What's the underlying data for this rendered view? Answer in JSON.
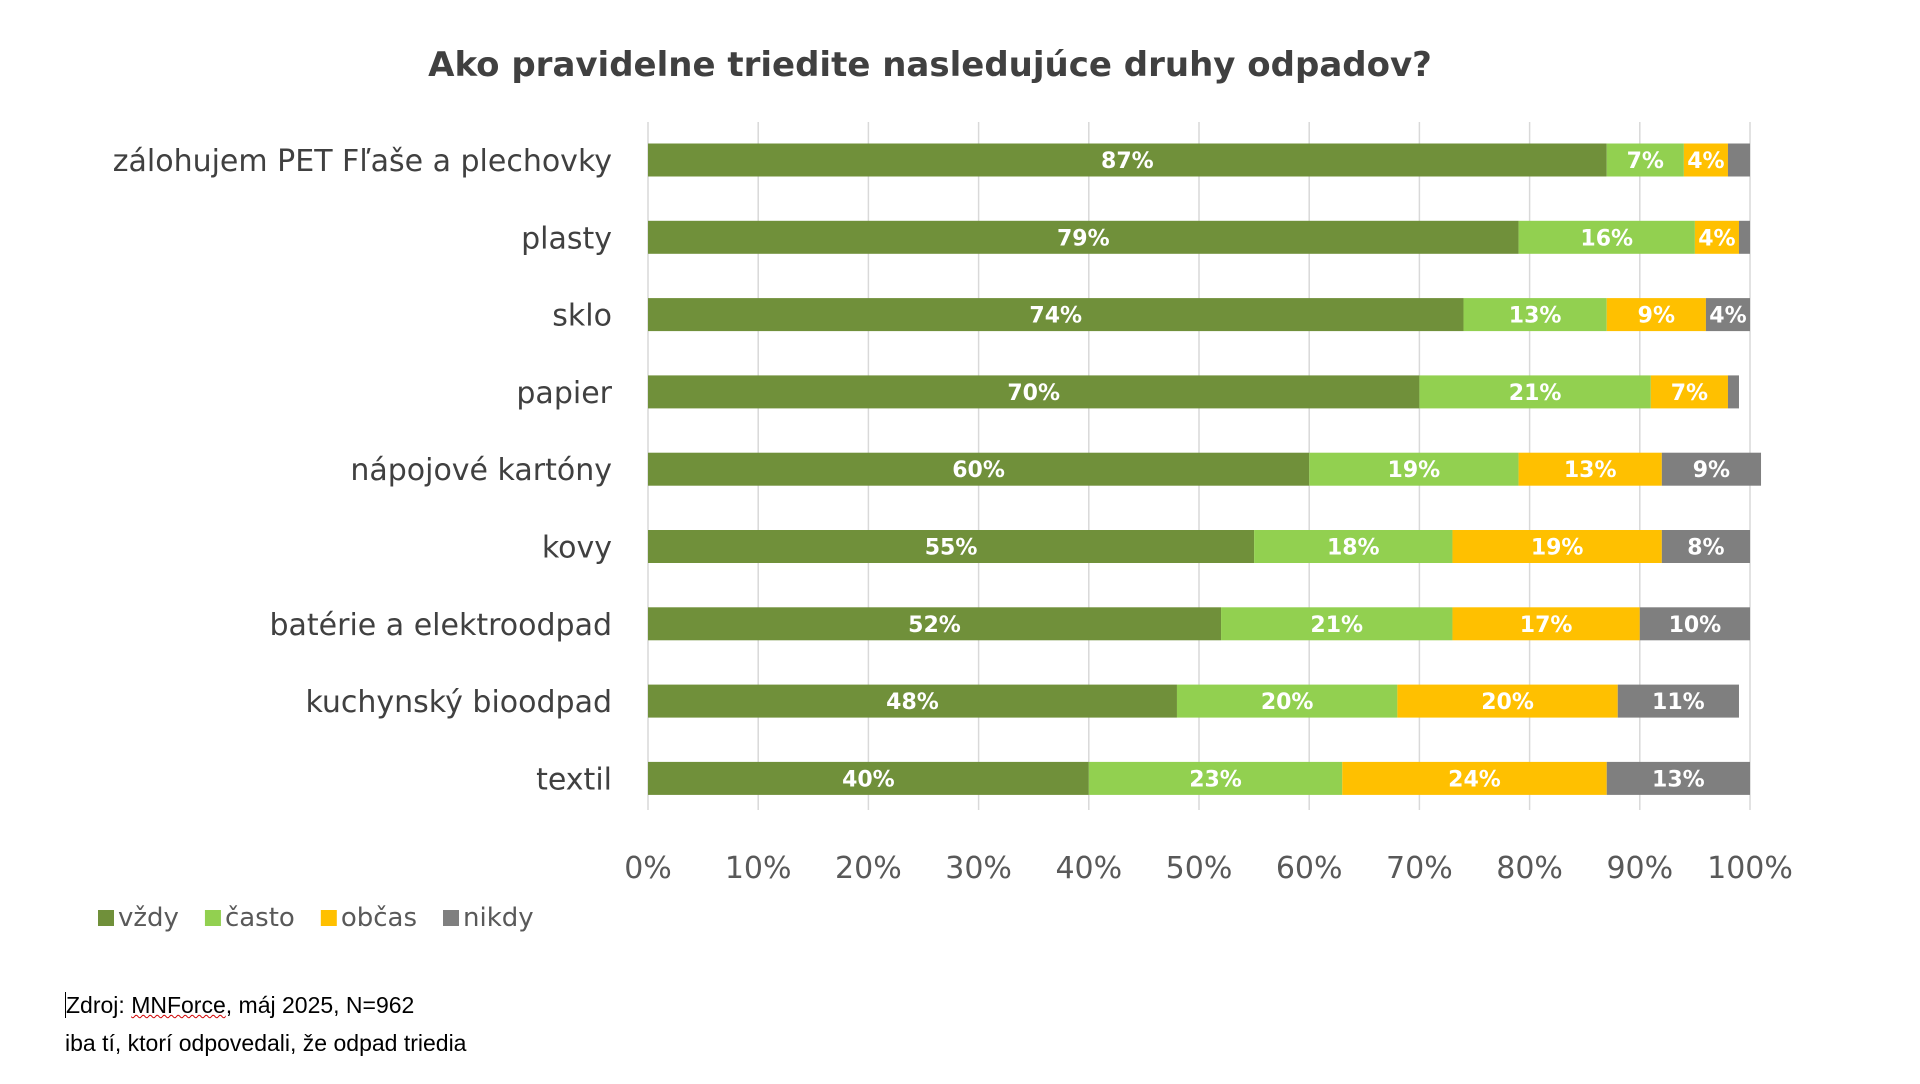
{
  "chart_data": {
    "type": "bar",
    "orientation": "horizontal",
    "stacked": true,
    "title": "Ako pravidelne triedite nasledujúce druhy odpadov?",
    "categories": [
      "zálohujem PET Fľaše a plechovky",
      "plasty",
      "sklo",
      "papier",
      "nápojové kartóny",
      "kovy",
      "batérie a elektroodpad",
      "kuchynský bioodpad",
      "textil"
    ],
    "series": [
      {
        "name": "vždy",
        "color": "#70903a",
        "values": [
          87,
          79,
          74,
          70,
          60,
          55,
          52,
          48,
          40
        ]
      },
      {
        "name": "často",
        "color": "#92d050",
        "values": [
          7,
          16,
          13,
          21,
          19,
          18,
          21,
          20,
          23
        ]
      },
      {
        "name": "občas",
        "color": "#ffc000",
        "values": [
          4,
          4,
          9,
          7,
          13,
          19,
          17,
          20,
          24
        ]
      },
      {
        "name": "nikdy",
        "color": "#7f7f7f",
        "values": [
          2,
          1,
          4,
          1,
          9,
          8,
          10,
          11,
          13
        ]
      }
    ],
    "value_labels": [
      [
        "87%",
        "7%",
        "4%",
        ""
      ],
      [
        "79%",
        "16%",
        "4%",
        ""
      ],
      [
        "74%",
        "13%",
        "9%",
        "4%"
      ],
      [
        "70%",
        "21%",
        "7%",
        ""
      ],
      [
        "60%",
        "19%",
        "13%",
        "9%"
      ],
      [
        "55%",
        "18%",
        "19%",
        "8%"
      ],
      [
        "52%",
        "21%",
        "17%",
        "10%"
      ],
      [
        "48%",
        "20%",
        "20%",
        "11%"
      ],
      [
        "40%",
        "23%",
        "24%",
        "13%"
      ]
    ],
    "xticks": [
      "0%",
      "10%",
      "20%",
      "30%",
      "40%",
      "50%",
      "60%",
      "70%",
      "80%",
      "90%",
      "100%"
    ],
    "xlim": [
      0,
      100
    ],
    "grid": true,
    "legend_position": "bottom-left"
  },
  "source": {
    "line1_prefix": "Zdroj: ",
    "line1_brand": "MNForce",
    "line1_suffix": ", máj 2025, N=962",
    "line2": "iba tí, ktorí odpovedali, že odpad triedia"
  }
}
